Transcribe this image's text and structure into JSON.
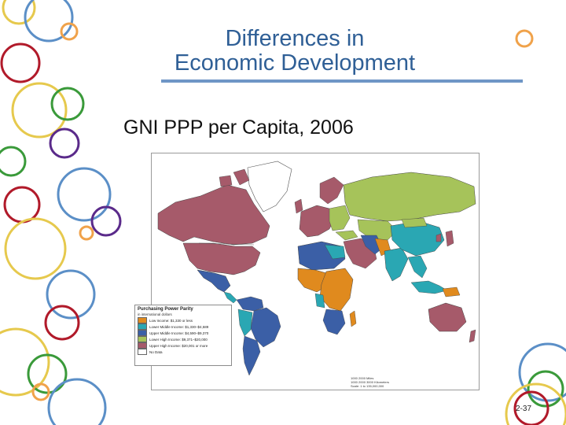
{
  "slide": {
    "title_line1": "Differences in",
    "title_line2": "Economic Development",
    "subtitle": "GNI PPP per Capita, 2006",
    "page_number": "2-37",
    "accent_colors": [
      "#2f5f96",
      "#6f96c6",
      "#b11a2a",
      "#f0a24a",
      "#e8d25a",
      "#5b8fc7",
      "#3a9a3a",
      "#5a2a8a"
    ]
  },
  "map": {
    "legend": {
      "title": "Purchasing Power Parity",
      "subtitle": "in international dollars",
      "items": [
        {
          "label": "Low Income: $1,330 or less",
          "color": "#e08a1e"
        },
        {
          "label": "Lower Middle Income: $1,330–$4,589",
          "color": "#2aa7b3"
        },
        {
          "label": "Upper Middle Income: $4,590–$9,370",
          "color": "#3b5fa6"
        },
        {
          "label": "Lower High Income: $9,371–$20,000",
          "color": "#a6c35a"
        },
        {
          "label": "Upper High Income: $20,001 or more",
          "color": "#a65a6a"
        },
        {
          "label": "No Data",
          "color": "#ffffff"
        }
      ]
    },
    "scale_text": "Scale: 1 to 135,000,000",
    "scale_ticks": [
      "1000",
      "2000 Miles",
      "1000",
      "2000",
      "3000 Kilometers"
    ]
  }
}
